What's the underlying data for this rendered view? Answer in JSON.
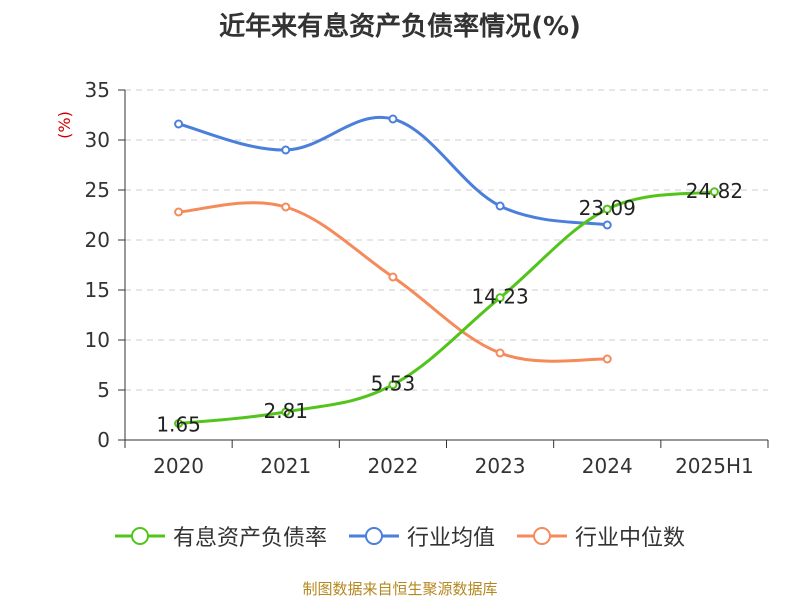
{
  "title": "近年来有息资产负债率情况(%)",
  "source": "制图数据来自恒生聚源数据库",
  "y_unit": "(%)",
  "colors": {
    "debt_ratio": "#52c41a",
    "industry_avg": "#4a7fdc",
    "industry_median": "#f58a5b",
    "y_unit": "#cc0000",
    "grid": "#cccccc",
    "axis": "#333333"
  },
  "chart_data": {
    "type": "line",
    "title": "近年来有息资产负债率情况(%)",
    "categories": [
      "2020",
      "2021",
      "2022",
      "2023",
      "2024",
      "2025H1"
    ],
    "ylabel": "(%)",
    "ylim": [
      0,
      35
    ],
    "yticks": [
      0,
      5,
      10,
      15,
      20,
      25,
      30,
      35
    ],
    "grid": true,
    "legend_position": "bottom",
    "series": [
      {
        "name": "有息资产负债率",
        "values": [
          1.65,
          2.81,
          5.53,
          14.23,
          23.09,
          24.82
        ],
        "labels": [
          "1.65",
          "2.81",
          "5.53",
          "14.23",
          "23.09",
          "24.82"
        ]
      },
      {
        "name": "行业均值",
        "values": [
          31.6,
          29.0,
          32.1,
          23.4,
          21.5,
          null
        ]
      },
      {
        "name": "行业中位数",
        "values": [
          22.8,
          23.3,
          16.3,
          8.7,
          8.1,
          null
        ]
      }
    ]
  }
}
